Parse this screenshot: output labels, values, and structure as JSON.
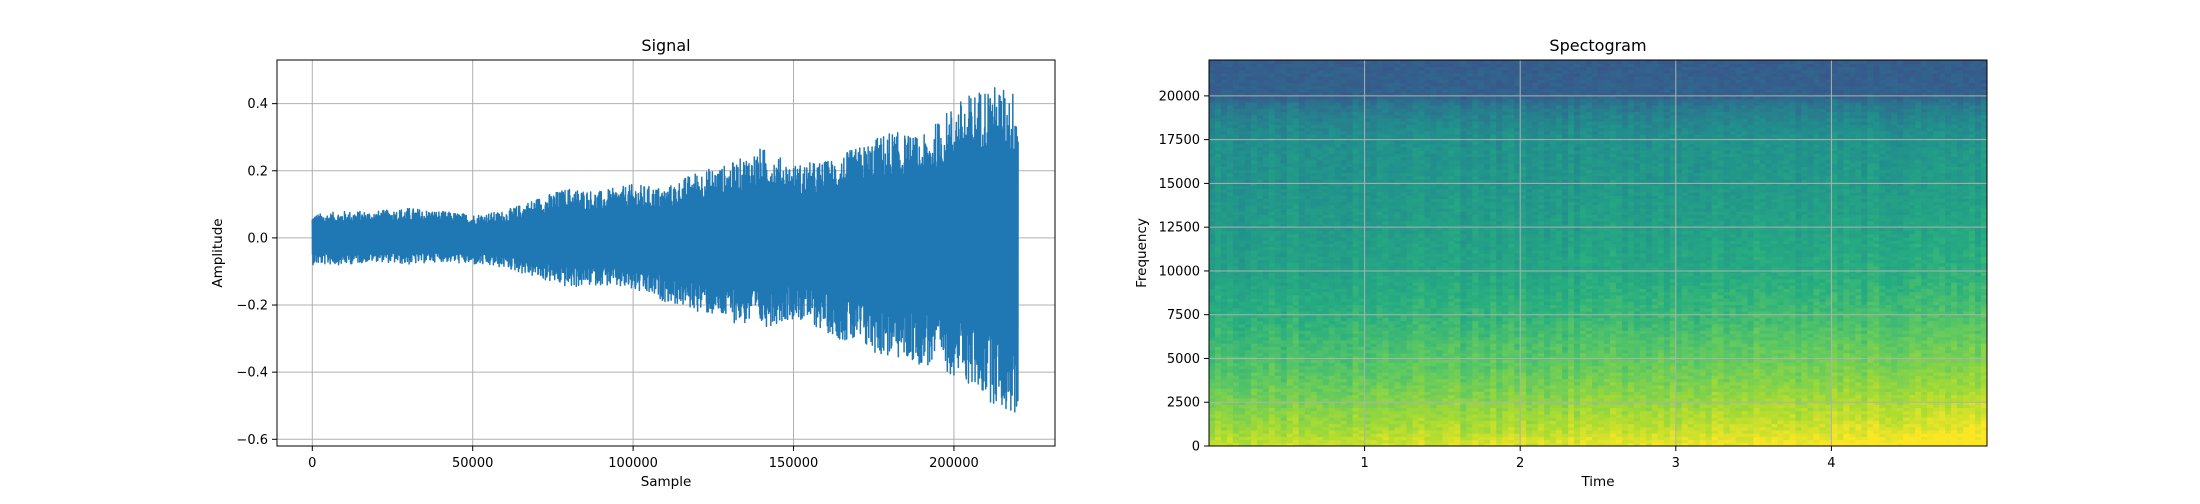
{
  "chart_data": [
    {
      "type": "line",
      "title": "Signal",
      "xlabel": "Sample",
      "ylabel": "Amplitude",
      "xlim": [
        -11000,
        231500
      ],
      "ylim": [
        -0.62,
        0.53
      ],
      "xticks": [
        0,
        50000,
        100000,
        150000,
        200000
      ],
      "xtick_labels": [
        "0",
        "50000",
        "100000",
        "150000",
        "200000"
      ],
      "yticks": [
        -0.6,
        -0.4,
        -0.2,
        0.0,
        0.2,
        0.4
      ],
      "ytick_labels": [
        "−0.6",
        "−0.4",
        "−0.2",
        "0.0",
        "0.2",
        "0.4"
      ],
      "grid": true,
      "series": [
        {
          "color": "#1f77b4",
          "x": [
            0,
            10000,
            20000,
            30000,
            40000,
            50000,
            60000,
            70000,
            80000,
            90000,
            100000,
            110000,
            120000,
            130000,
            140000,
            150000,
            160000,
            170000,
            180000,
            190000,
            200000,
            210000,
            220000
          ],
          "upper_envelope": [
            0.07,
            0.08,
            0.08,
            0.09,
            0.08,
            0.07,
            0.08,
            0.12,
            0.15,
            0.14,
            0.16,
            0.15,
            0.2,
            0.22,
            0.27,
            0.22,
            0.23,
            0.27,
            0.32,
            0.3,
            0.4,
            0.46,
            0.44
          ],
          "lower_envelope": [
            -0.08,
            -0.08,
            -0.07,
            -0.08,
            -0.07,
            -0.08,
            -0.09,
            -0.12,
            -0.15,
            -0.14,
            -0.16,
            -0.19,
            -0.22,
            -0.25,
            -0.27,
            -0.24,
            -0.28,
            -0.33,
            -0.36,
            -0.38,
            -0.41,
            -0.48,
            -0.55
          ]
        }
      ]
    },
    {
      "type": "heatmap",
      "title": "Spectogram",
      "xlabel": "Time",
      "ylabel": "Frequency",
      "xlim": [
        0,
        5.0
      ],
      "ylim": [
        0,
        22050
      ],
      "xticks": [
        1,
        2,
        3,
        4
      ],
      "xtick_labels": [
        "1",
        "2",
        "3",
        "4"
      ],
      "yticks": [
        0,
        2500,
        5000,
        7500,
        10000,
        12500,
        15000,
        17500,
        20000
      ],
      "ytick_labels": [
        "0",
        "2500",
        "5000",
        "7500",
        "10000",
        "12500",
        "15000",
        "17500",
        "20000"
      ],
      "grid": true,
      "colormap": "viridis",
      "frequency_bins_hz": [
        0,
        1000,
        2500,
        4000,
        5500,
        7500,
        10000,
        12500,
        15000,
        17500,
        18500,
        19500,
        20000,
        22050
      ],
      "relative_level_by_frequency": [
        0.92,
        0.86,
        0.8,
        0.74,
        0.7,
        0.64,
        0.58,
        0.55,
        0.52,
        0.5,
        0.46,
        0.4,
        0.32,
        0.3
      ],
      "relative_level_trend_over_time": [
        0.0,
        0.02,
        0.05,
        0.08,
        0.12
      ]
    }
  ]
}
